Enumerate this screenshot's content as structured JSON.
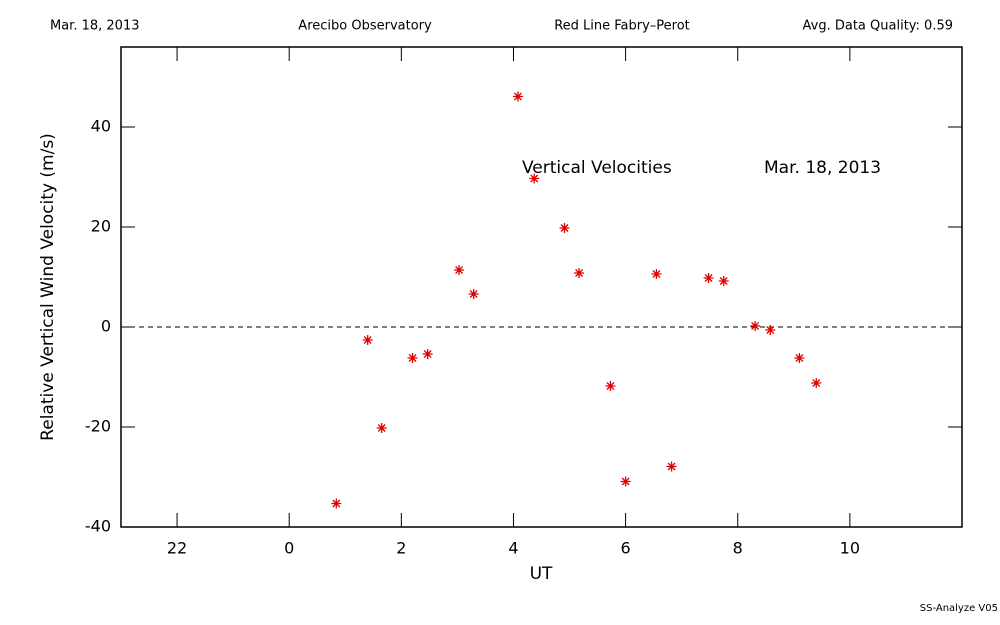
{
  "chart_data": {
    "type": "scatter",
    "header": [
      "Mar. 18, 2013",
      "Arecibo Observatory",
      "Red Line Fabry–Perot",
      "Avg. Data Quality: 0.59"
    ],
    "annotations": [
      "Vertical Velocities",
      "Mar. 18, 2013"
    ],
    "footer": "SS-Analyze V05",
    "xlabel": "UT",
    "ylabel": "Relative Vertical Wind Velocity (m/s)",
    "xlim": [
      21,
      36
    ],
    "xticks": [
      22,
      {
        "value": 24,
        "label": "0"
      },
      {
        "value": 26,
        "label": "2"
      },
      {
        "value": 28,
        "label": "4"
      },
      {
        "value": 30,
        "label": "6"
      },
      {
        "value": 32,
        "label": "8"
      },
      {
        "value": 34,
        "label": "10"
      }
    ],
    "ylim": [
      -40,
      56
    ],
    "yticks": [
      -40,
      -20,
      0,
      20,
      40
    ],
    "reference_line": 0,
    "color": "#e00000",
    "x": [
      24.84,
      25.4,
      25.65,
      26.2,
      26.47,
      27.03,
      27.29,
      28.08,
      28.37,
      28.91,
      29.17,
      29.73,
      30.0,
      30.55,
      30.82,
      31.48,
      31.75,
      32.31,
      32.58,
      33.1,
      33.4
    ],
    "values": [
      -35.3,
      -2.6,
      -20.2,
      -6.2,
      -5.4,
      11.4,
      6.6,
      46.1,
      29.7,
      19.8,
      10.8,
      -11.8,
      -30.9,
      10.6,
      -27.9,
      9.8,
      9.2,
      0.2,
      -0.6,
      -6.2,
      -11.2
    ]
  }
}
